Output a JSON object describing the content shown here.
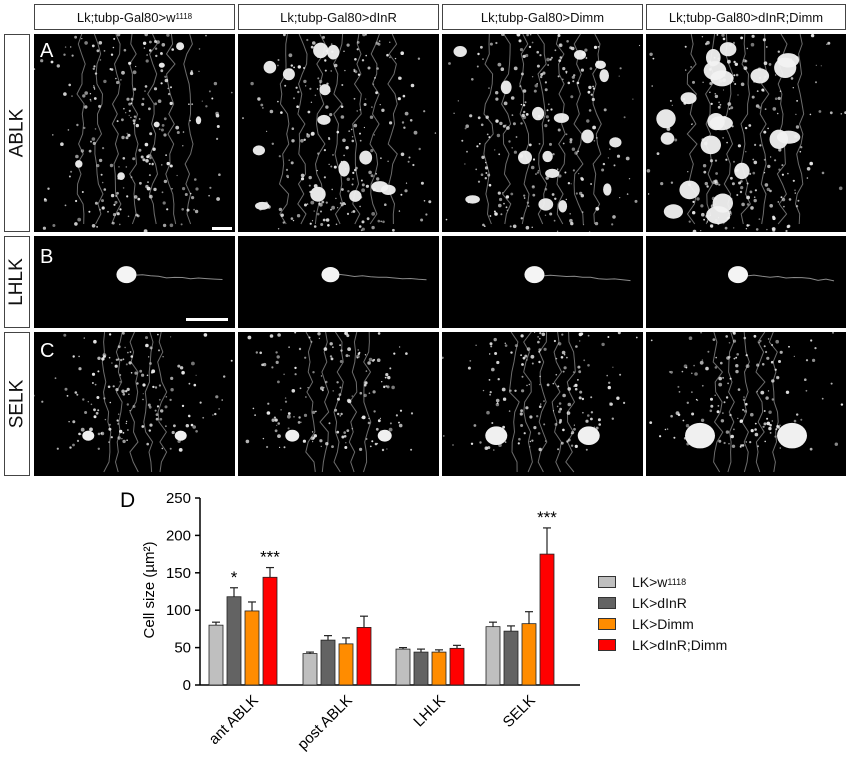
{
  "columns": [
    {
      "label": "Lk;tubp-Gal80>w",
      "sup": "1118"
    },
    {
      "label": "Lk;tubp-Gal80>dInR",
      "sup": ""
    },
    {
      "label": "Lk;tubp-Gal80>Dimm",
      "sup": ""
    },
    {
      "label": "Lk;tubp-Gal80>dInR;Dimm",
      "sup": ""
    }
  ],
  "rows": [
    {
      "label": "ABLK",
      "panel": "A"
    },
    {
      "label": "LHLK",
      "panel": "B"
    },
    {
      "label": "SELK",
      "panel": "C"
    }
  ],
  "chart_panel_label": "D",
  "chart_data": {
    "type": "bar",
    "ylabel": "Cell size (µm²)",
    "ylim": [
      0,
      250
    ],
    "yticks": [
      0,
      50,
      100,
      150,
      200,
      250
    ],
    "categories": [
      "ant ABLK",
      "post ABLK",
      "LHLK",
      "SELK"
    ],
    "series": [
      {
        "name": "LK>w",
        "sup": "1118",
        "color": "#bfbfbf",
        "values": [
          80,
          42,
          48,
          78
        ],
        "errors": [
          4,
          2,
          2,
          6
        ]
      },
      {
        "name": "LK>dInR",
        "sup": "",
        "color": "#636363",
        "values": [
          118,
          60,
          44,
          72
        ],
        "errors": [
          12,
          6,
          4,
          7
        ]
      },
      {
        "name": "LK>Dimm",
        "sup": "",
        "color": "#ff8c00",
        "values": [
          99,
          55,
          44,
          82
        ],
        "errors": [
          12,
          8,
          3,
          16
        ]
      },
      {
        "name": "LK>dInR;Dimm",
        "sup": "",
        "color": "#ff0000",
        "values": [
          144,
          77,
          49,
          175
        ],
        "errors": [
          13,
          15,
          4,
          35
        ]
      }
    ],
    "annotations": [
      {
        "category": 0,
        "series": 1,
        "text": "*"
      },
      {
        "category": 0,
        "series": 3,
        "text": "***"
      },
      {
        "category": 3,
        "series": 3,
        "text": "***"
      }
    ]
  }
}
